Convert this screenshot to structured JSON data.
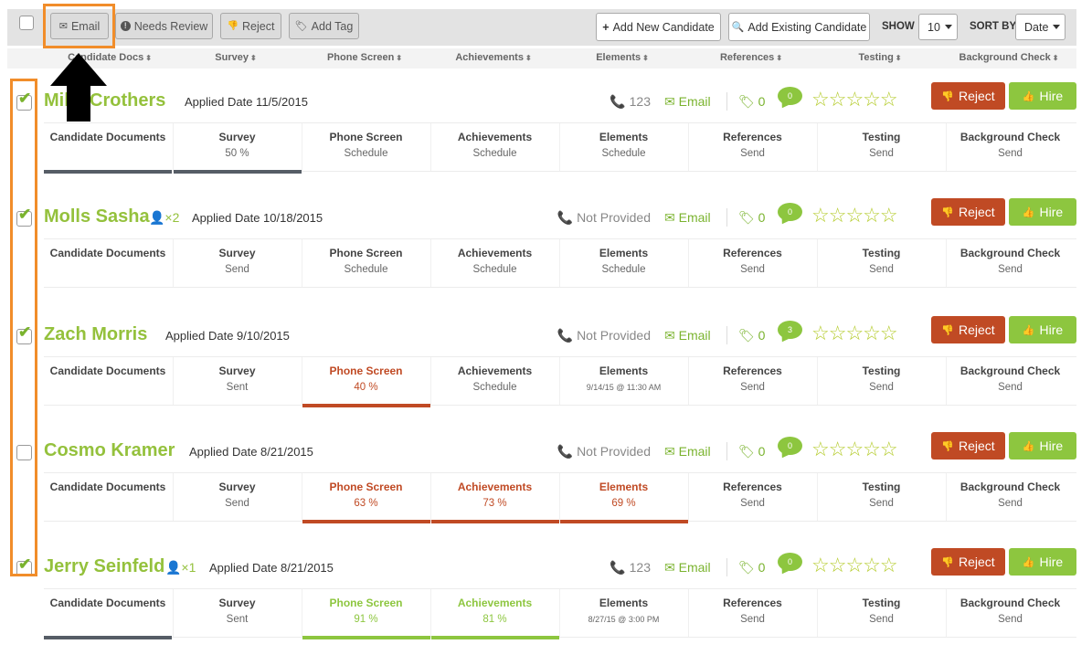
{
  "toolbar": {
    "email": "Email",
    "needs_review": "Needs Review",
    "reject": "Reject",
    "add_tag": "Add Tag",
    "add_new_candidate": "Add New Candidate",
    "add_existing_candidate": "Add Existing Candidate",
    "show_label": "SHOW",
    "show_value": "10",
    "sort_label": "SORT BY",
    "sort_value": "Date"
  },
  "columns": [
    "Candidate Docs",
    "Survey",
    "Phone Screen",
    "Achievements",
    "Elements",
    "References",
    "Testing",
    "Background Check"
  ],
  "labels": {
    "email": "Email",
    "reject": "Reject",
    "hire": "Hire",
    "stars": "☆☆☆☆☆"
  },
  "candidates": [
    {
      "name": "Mike Crothers",
      "checked": true,
      "duplicates": "",
      "applied": "Applied Date 11/5/2015",
      "phone": "123",
      "tags": "0",
      "comments": "0",
      "stages": [
        {
          "title": "Candidate Documents",
          "value": "",
          "state": "done"
        },
        {
          "title": "Survey",
          "value": "50 %",
          "state": "done"
        },
        {
          "title": "Phone Screen",
          "value": "Schedule",
          "state": "none"
        },
        {
          "title": "Achievements",
          "value": "Schedule",
          "state": "none"
        },
        {
          "title": "Elements",
          "value": "Schedule",
          "state": "none"
        },
        {
          "title": "References",
          "value": "Send",
          "state": "none"
        },
        {
          "title": "Testing",
          "value": "Send",
          "state": "none"
        },
        {
          "title": "Background Check",
          "value": "Send",
          "state": "none"
        }
      ]
    },
    {
      "name": "Molls Sasha",
      "checked": true,
      "duplicates": "2",
      "applied": "Applied Date 10/18/2015",
      "phone": "Not Provided",
      "tags": "0",
      "comments": "0",
      "stages": [
        {
          "title": "Candidate Documents",
          "value": "",
          "state": "none"
        },
        {
          "title": "Survey",
          "value": "Send",
          "state": "none"
        },
        {
          "title": "Phone Screen",
          "value": "Schedule",
          "state": "none"
        },
        {
          "title": "Achievements",
          "value": "Schedule",
          "state": "none"
        },
        {
          "title": "Elements",
          "value": "Schedule",
          "state": "none"
        },
        {
          "title": "References",
          "value": "Send",
          "state": "none"
        },
        {
          "title": "Testing",
          "value": "Send",
          "state": "none"
        },
        {
          "title": "Background Check",
          "value": "Send",
          "state": "none"
        }
      ]
    },
    {
      "name": "Zach Morris",
      "checked": true,
      "duplicates": "",
      "applied": "Applied Date 9/10/2015",
      "phone": "Not Provided",
      "tags": "0",
      "comments": "3",
      "stages": [
        {
          "title": "Candidate Documents",
          "value": "",
          "state": "none"
        },
        {
          "title": "Survey",
          "value": "Sent",
          "state": "none"
        },
        {
          "title": "Phone Screen",
          "value": "40 %",
          "state": "orange"
        },
        {
          "title": "Achievements",
          "value": "Schedule",
          "state": "none"
        },
        {
          "title": "Elements",
          "value": "9/14/15 @ 11:30 AM",
          "state": "none",
          "small": true
        },
        {
          "title": "References",
          "value": "Send",
          "state": "none"
        },
        {
          "title": "Testing",
          "value": "Send",
          "state": "none"
        },
        {
          "title": "Background Check",
          "value": "Send",
          "state": "none"
        }
      ]
    },
    {
      "name": "Cosmo Kramer",
      "checked": false,
      "duplicates": "",
      "applied": "Applied Date 8/21/2015",
      "phone": "Not Provided",
      "tags": "0",
      "comments": "0",
      "stages": [
        {
          "title": "Candidate Documents",
          "value": "",
          "state": "none"
        },
        {
          "title": "Survey",
          "value": "Send",
          "state": "none"
        },
        {
          "title": "Phone Screen",
          "value": "63 %",
          "state": "orange"
        },
        {
          "title": "Achievements",
          "value": "73 %",
          "state": "orange"
        },
        {
          "title": "Elements",
          "value": "69 %",
          "state": "orange"
        },
        {
          "title": "References",
          "value": "Send",
          "state": "none"
        },
        {
          "title": "Testing",
          "value": "Send",
          "state": "none"
        },
        {
          "title": "Background Check",
          "value": "Send",
          "state": "none"
        }
      ]
    },
    {
      "name": "Jerry Seinfeld",
      "checked": true,
      "duplicates": "1",
      "applied": "Applied Date 8/21/2015",
      "phone": "123",
      "tags": "0",
      "comments": "0",
      "stages": [
        {
          "title": "Candidate Documents",
          "value": "",
          "state": "done"
        },
        {
          "title": "Survey",
          "value": "Sent",
          "state": "none"
        },
        {
          "title": "Phone Screen",
          "value": "91 %",
          "state": "green"
        },
        {
          "title": "Achievements",
          "value": "81 %",
          "state": "green"
        },
        {
          "title": "Elements",
          "value": "8/27/15 @ 3:00 PM",
          "state": "none",
          "small": true
        },
        {
          "title": "References",
          "value": "Send",
          "state": "none"
        },
        {
          "title": "Testing",
          "value": "Send",
          "state": "none"
        },
        {
          "title": "Background Check",
          "value": "Send",
          "state": "none"
        }
      ]
    }
  ],
  "colors": {
    "brand_green": "#8dc63f",
    "reject_red": "#c04a24",
    "annotation_orange": "#f18d2a"
  }
}
